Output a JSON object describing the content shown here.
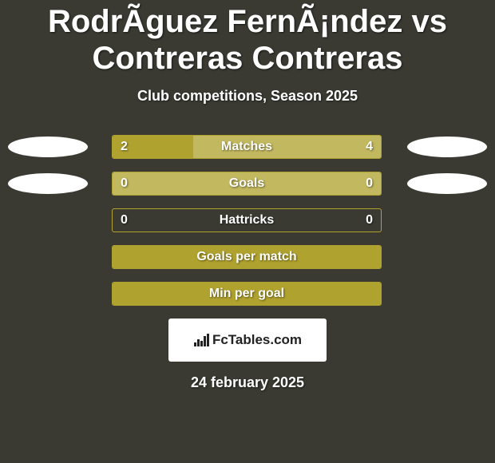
{
  "colors": {
    "background": "#3a3a33",
    "text": "#ffffff",
    "accent": "#b0a22f",
    "accent_light": "#c2b85f",
    "oval": "#ffffff",
    "badge_bg": "#ffffff",
    "badge_text": "#222222"
  },
  "typography": {
    "title_fontsize": 40,
    "subtitle_fontsize": 18,
    "bar_label_fontsize": 16,
    "bar_value_fontsize": 16,
    "date_fontsize": 18,
    "badge_fontsize": 17
  },
  "title": "RodrÃ­guez FernÃ¡ndez vs Contreras Contreras",
  "subtitle": "Club competitions, Season 2025",
  "date": "24 february 2025",
  "badge": {
    "text": "FcTables.com"
  },
  "stats": [
    {
      "label": "Matches",
      "left_value": "2",
      "right_value": "4",
      "left_fill_pct": 30,
      "right_fill_pct": 70,
      "left_fill_color": "#b0a22f",
      "right_fill_color": "#c2b85f",
      "show_left_oval": true,
      "show_right_oval": true
    },
    {
      "label": "Goals",
      "left_value": "0",
      "right_value": "0",
      "left_fill_pct": 0,
      "right_fill_pct": 100,
      "left_fill_color": "#b0a22f",
      "right_fill_color": "#c2b85f",
      "show_left_oval": true,
      "show_right_oval": true
    },
    {
      "label": "Hattricks",
      "left_value": "0",
      "right_value": "0",
      "left_fill_pct": 0,
      "right_fill_pct": 0,
      "left_fill_color": "#b0a22f",
      "right_fill_color": "#c2b85f",
      "show_left_oval": false,
      "show_right_oval": false
    },
    {
      "label": "Goals per match",
      "left_value": "",
      "right_value": "",
      "left_fill_pct": 100,
      "right_fill_pct": 0,
      "left_fill_color": "#b0a22f",
      "right_fill_color": "#c2b85f",
      "show_left_oval": false,
      "show_right_oval": false
    },
    {
      "label": "Min per goal",
      "left_value": "",
      "right_value": "",
      "left_fill_pct": 100,
      "right_fill_pct": 0,
      "left_fill_color": "#b0a22f",
      "right_fill_color": "#c2b85f",
      "show_left_oval": false,
      "show_right_oval": false
    }
  ]
}
